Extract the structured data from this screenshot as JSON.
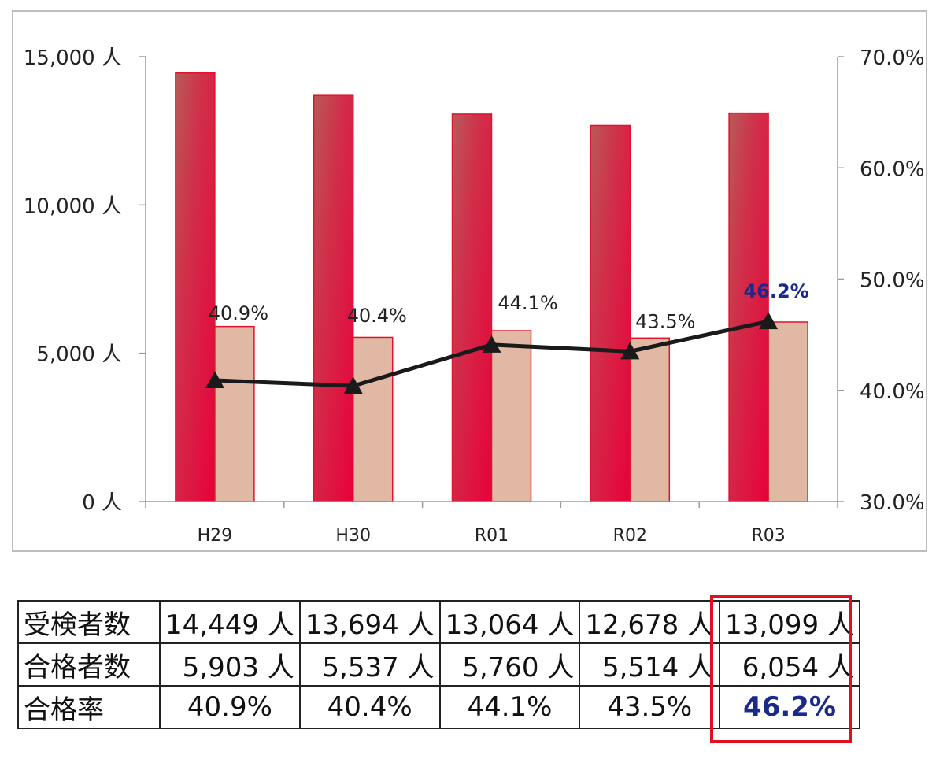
{
  "chart_data": {
    "type": "bar",
    "categories": [
      "H29",
      "H30",
      "R01",
      "R02",
      "R03"
    ],
    "series": [
      {
        "values": [
          14449,
          13694,
          13064,
          12678,
          13099
        ],
        "axis": "left",
        "color": "#e0143c"
      },
      {
        "values": [
          5903,
          5537,
          5760,
          5514,
          6054
        ],
        "axis": "left",
        "color": "#e0b8a4"
      },
      {
        "type": "line",
        "values": [
          40.9,
          40.4,
          44.1,
          43.5,
          46.2
        ],
        "axis": "right",
        "color": "#1a1a1a",
        "marker": "triangle"
      }
    ],
    "ylim": [
      0,
      15000
    ],
    "y2lim": [
      30,
      70
    ],
    "left_ticks": [
      "0 人",
      "5,000 人",
      "10,000 人",
      "15,000 人"
    ],
    "right_ticks": [
      "30.0%",
      "40.0%",
      "50.0%",
      "60.0%",
      "70.0%"
    ],
    "rate_labels": [
      "40.9%",
      "40.4%",
      "44.1%",
      "43.5%",
      "46.2%"
    ],
    "highlight_color": "#1a2a8c",
    "grid": false,
    "legend": "none"
  },
  "table": {
    "rows": [
      {
        "label": "受検者数",
        "cells": [
          "14,449 人",
          "13,694 人",
          "13,064 人",
          "12,678 人",
          "13,099 人"
        ]
      },
      {
        "label": "合格者数",
        "cells": [
          "5,903 人",
          "5,537 人",
          "5,760 人",
          "5,514 人",
          "6,054 人"
        ]
      },
      {
        "label": "合格率",
        "cells": [
          "40.9%",
          "40.4%",
          "44.1%",
          "43.5%",
          "46.2%"
        ]
      }
    ],
    "highlight_border_color": "#e0101e"
  }
}
